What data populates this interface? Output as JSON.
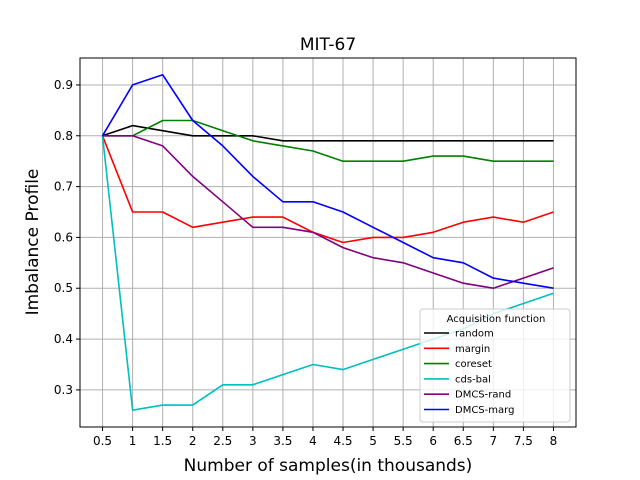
{
  "chart_data": {
    "type": "line",
    "title": "MIT-67",
    "xlabel": "Number of samples(in thousands)",
    "ylabel": "Imbalance Profile",
    "x": [
      0.5,
      1,
      1.5,
      2,
      2.5,
      3,
      3.5,
      4,
      4.5,
      5,
      5.5,
      6,
      6.5,
      7,
      7.5,
      8
    ],
    "xticks": [
      "0.5",
      "1",
      "1.5",
      "2",
      "2.5",
      "3",
      "3.5",
      "4",
      "4.5",
      "5",
      "5.5",
      "6",
      "6.5",
      "7",
      "7.5",
      "8"
    ],
    "yticks": [
      "0.3",
      "0.4",
      "0.5",
      "0.6",
      "0.7",
      "0.8",
      "0.9"
    ],
    "xlim": [
      0.125,
      8.375
    ],
    "ylim": [
      0.227,
      0.953
    ],
    "grid": true,
    "legend": {
      "title": "Acquisition function",
      "position": "lower-right"
    },
    "series": [
      {
        "name": "random",
        "color": "#000000",
        "values": [
          0.8,
          0.82,
          0.81,
          0.8,
          0.8,
          0.8,
          0.79,
          0.79,
          0.79,
          0.79,
          0.79,
          0.79,
          0.79,
          0.79,
          0.79,
          0.79
        ]
      },
      {
        "name": "margin",
        "color": "#ff0000",
        "values": [
          0.8,
          0.65,
          0.65,
          0.62,
          0.63,
          0.64,
          0.64,
          0.61,
          0.59,
          0.6,
          0.6,
          0.61,
          0.63,
          0.64,
          0.63,
          0.65
        ]
      },
      {
        "name": "coreset",
        "color": "#008000",
        "values": [
          0.8,
          0.8,
          0.83,
          0.83,
          0.81,
          0.79,
          0.78,
          0.77,
          0.75,
          0.75,
          0.75,
          0.76,
          0.76,
          0.75,
          0.75,
          0.75
        ]
      },
      {
        "name": "cds-bal",
        "color": "#00bfbf",
        "values": [
          0.8,
          0.26,
          0.27,
          0.27,
          0.31,
          0.31,
          0.33,
          0.35,
          0.34,
          0.36,
          0.38,
          0.4,
          0.42,
          0.45,
          0.47,
          0.49
        ]
      },
      {
        "name": "DMCS-rand",
        "color": "#800080",
        "values": [
          0.8,
          0.8,
          0.78,
          0.72,
          0.67,
          0.62,
          0.62,
          0.61,
          0.58,
          0.56,
          0.55,
          0.53,
          0.51,
          0.5,
          0.52,
          0.54
        ]
      },
      {
        "name": "DMCS-marg",
        "color": "#0000ff",
        "values": [
          0.8,
          0.9,
          0.92,
          0.83,
          0.78,
          0.72,
          0.67,
          0.67,
          0.65,
          0.62,
          0.59,
          0.56,
          0.55,
          0.52,
          0.51,
          0.5
        ]
      }
    ]
  }
}
